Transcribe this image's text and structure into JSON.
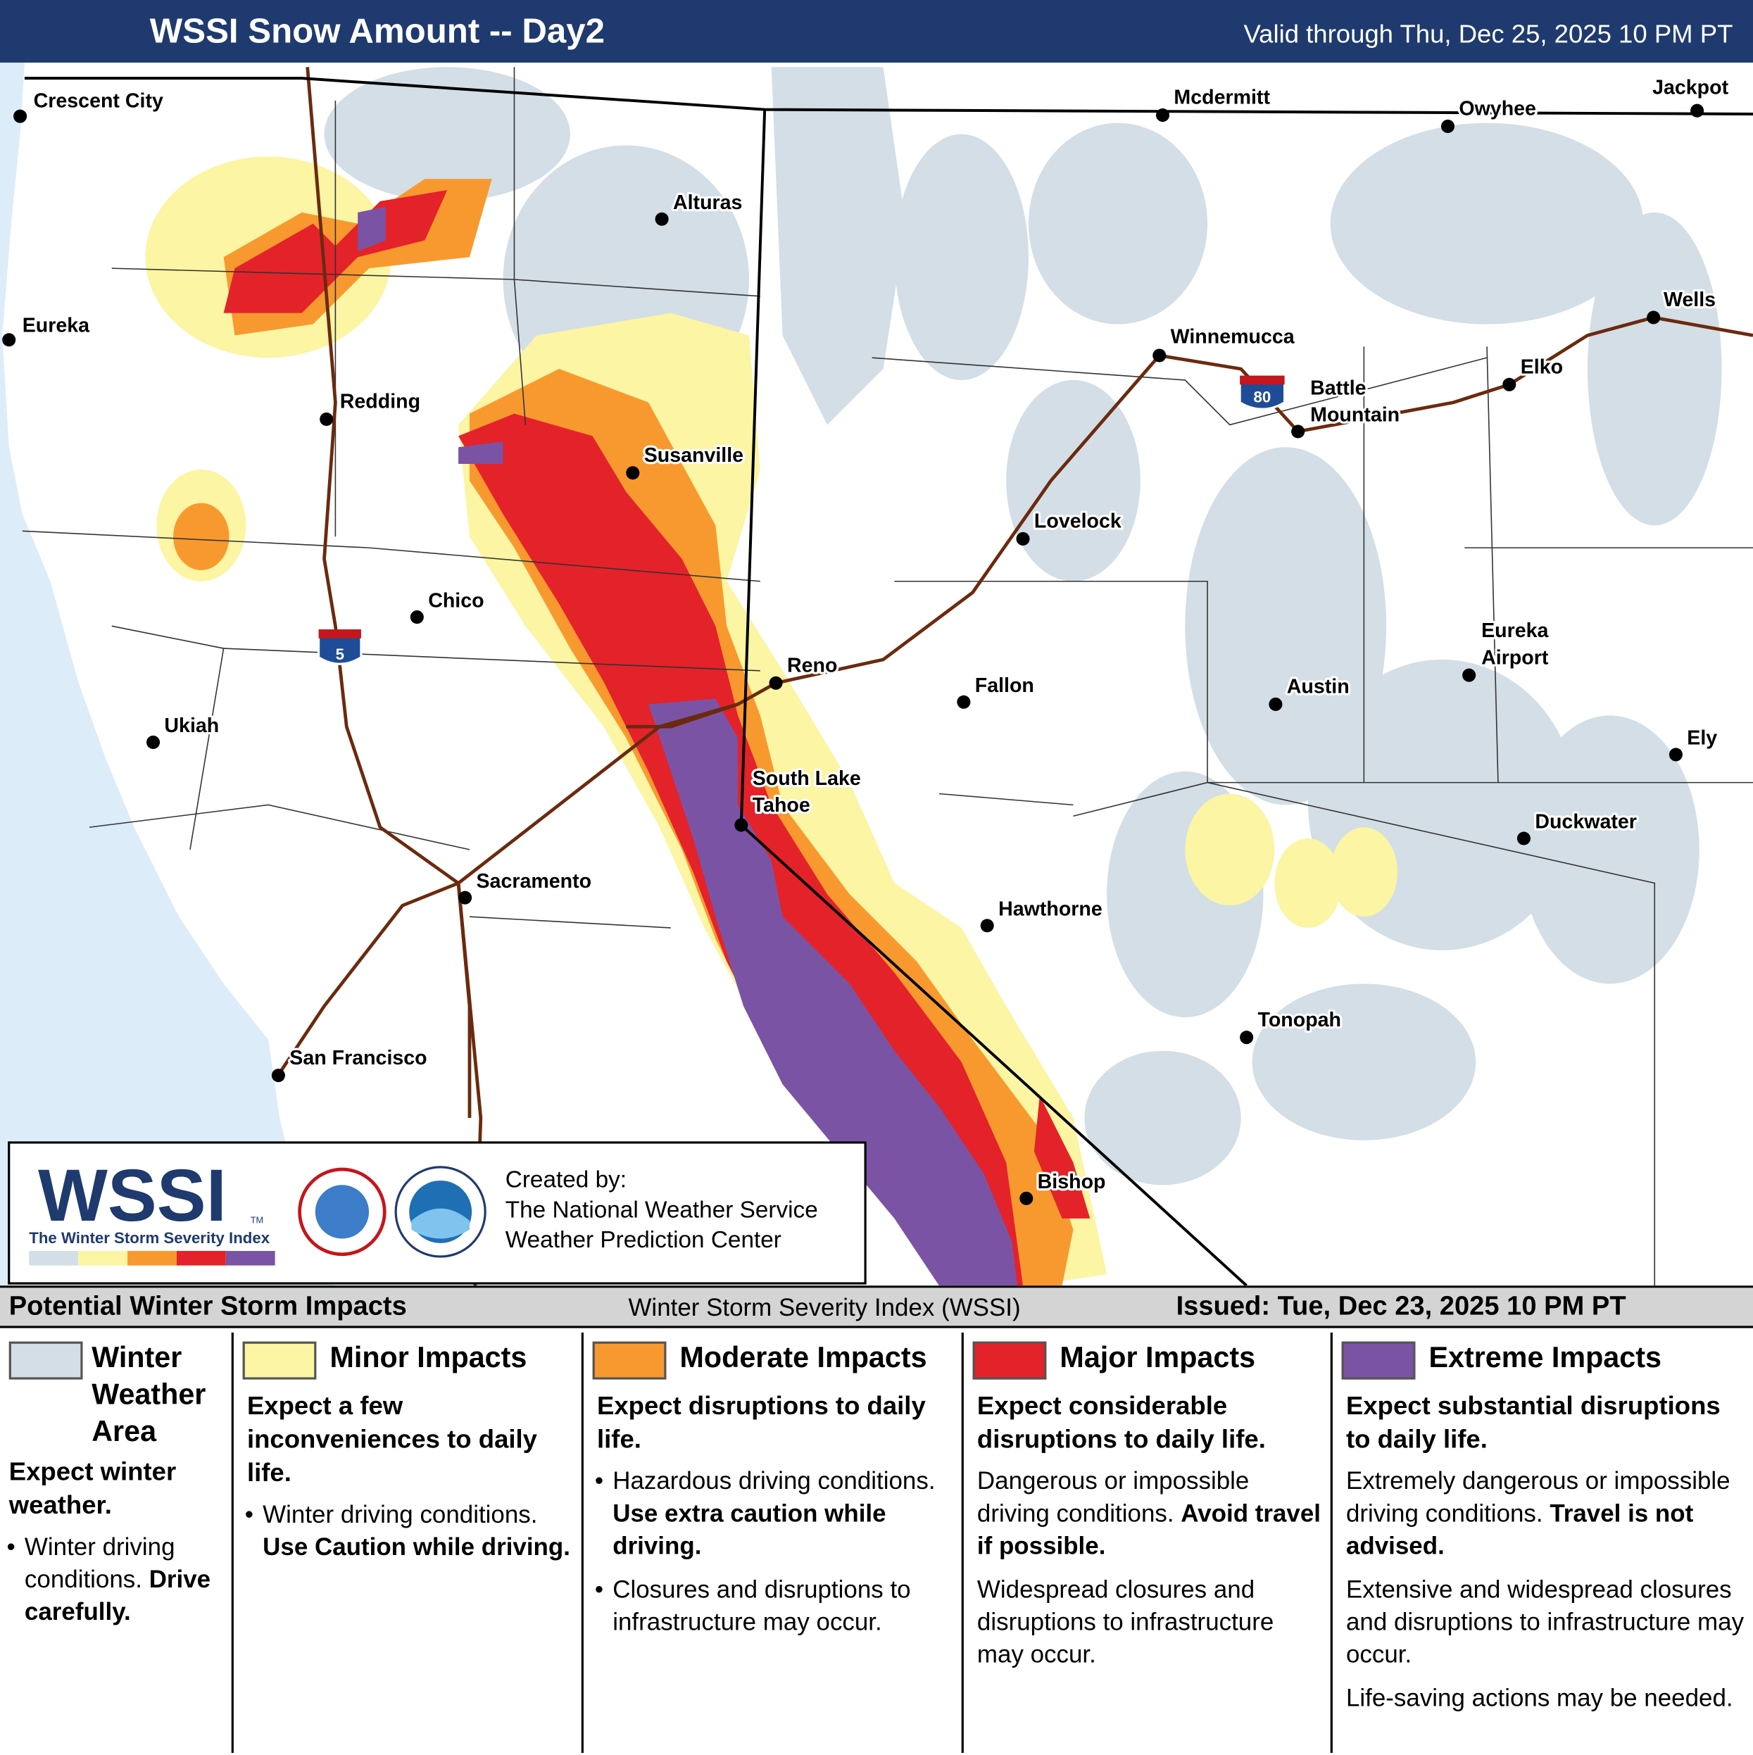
{
  "header": {
    "title": "WSSI Snow Amount -- Day2",
    "valid": "Valid through Thu, Dec 25, 2025 10 PM PT"
  },
  "map": {
    "cities": [
      [
        "Crescent City"
      ],
      [
        "Eureka"
      ],
      [
        "Redding"
      ],
      [
        "Alturas"
      ],
      [
        "Susanville"
      ],
      [
        "Chico"
      ],
      [
        "Ukiah"
      ],
      [
        "Reno"
      ],
      [
        "South Lake",
        "Tahoe"
      ],
      [
        "Sacramento"
      ],
      [
        "San Francisco"
      ],
      [
        "Mcdermitt"
      ],
      [
        "Owyhee"
      ],
      [
        "Jackpot"
      ],
      [
        "Winnemucca"
      ],
      [
        "Battle",
        "Mountain"
      ],
      [
        "Elko"
      ],
      [
        "Wells"
      ],
      [
        "Lovelock"
      ],
      [
        "Fallon"
      ],
      [
        "Austin"
      ],
      [
        "Eureka",
        "Airport"
      ],
      [
        "Ely"
      ],
      [
        "Duckwater"
      ],
      [
        "Hawthorne"
      ],
      [
        "Tonopah"
      ],
      [
        "Bishop"
      ]
    ],
    "shields": [
      "5",
      "80"
    ]
  },
  "logo": {
    "wssi": "WSSI",
    "tm": "TM",
    "subtitle": "The Winter Storm Severity Index",
    "created_by": "Created by:",
    "org1": "The National Weather Service",
    "org2": "Weather Prediction Center"
  },
  "legend": {
    "title": "Potential Winter Storm Impacts",
    "center": "Winter Storm Severity Index (WSSI)",
    "issued": "Issued: Tue, Dec 23, 2025 10 PM PT",
    "categories": [
      {
        "name": "Winter Weather Area",
        "color": "#d3dee6",
        "lead": "Expect winter weather.",
        "bullets": true,
        "items": [
          {
            "plain": "Winter driving conditions.",
            "bold": "Drive carefully."
          }
        ]
      },
      {
        "name": "Minor Impacts",
        "color": "#fbf5a4",
        "lead": "Expect a few inconveniences to daily life.",
        "bullets": true,
        "items": [
          {
            "plain": "Winter driving conditions.",
            "bold": "Use Caution while driving."
          }
        ]
      },
      {
        "name": "Moderate Impacts",
        "color": "#f8992f",
        "lead": "Expect disruptions to daily life.",
        "bullets": true,
        "items": [
          {
            "plain": "Hazardous driving conditions.",
            "bold": "Use extra caution while driving."
          },
          {
            "plain": "Closures and disruptions to infrastructure may occur."
          }
        ]
      },
      {
        "name": "Major Impacts",
        "color": "#e4222a",
        "lead": "Expect considerable disruptions to daily life.",
        "bullets": false,
        "items": [
          {
            "plain": "Dangerous or impossible driving conditions.",
            "bold": "Avoid travel if possible."
          },
          {
            "plain": "Widespread closures and disruptions to infrastructure may occur."
          }
        ]
      },
      {
        "name": "Extreme Impacts",
        "color": "#7b53a5",
        "lead": "Expect substantial disruptions to daily life.",
        "bullets": false,
        "items": [
          {
            "plain": "Extremely dangerous or impossible driving conditions.",
            "bold": "Travel is not advised."
          },
          {
            "plain": "Extensive and widespread closures and disruptions to infrastructure may occur."
          },
          {
            "plain": "Life-saving actions may be needed."
          }
        ]
      }
    ]
  }
}
